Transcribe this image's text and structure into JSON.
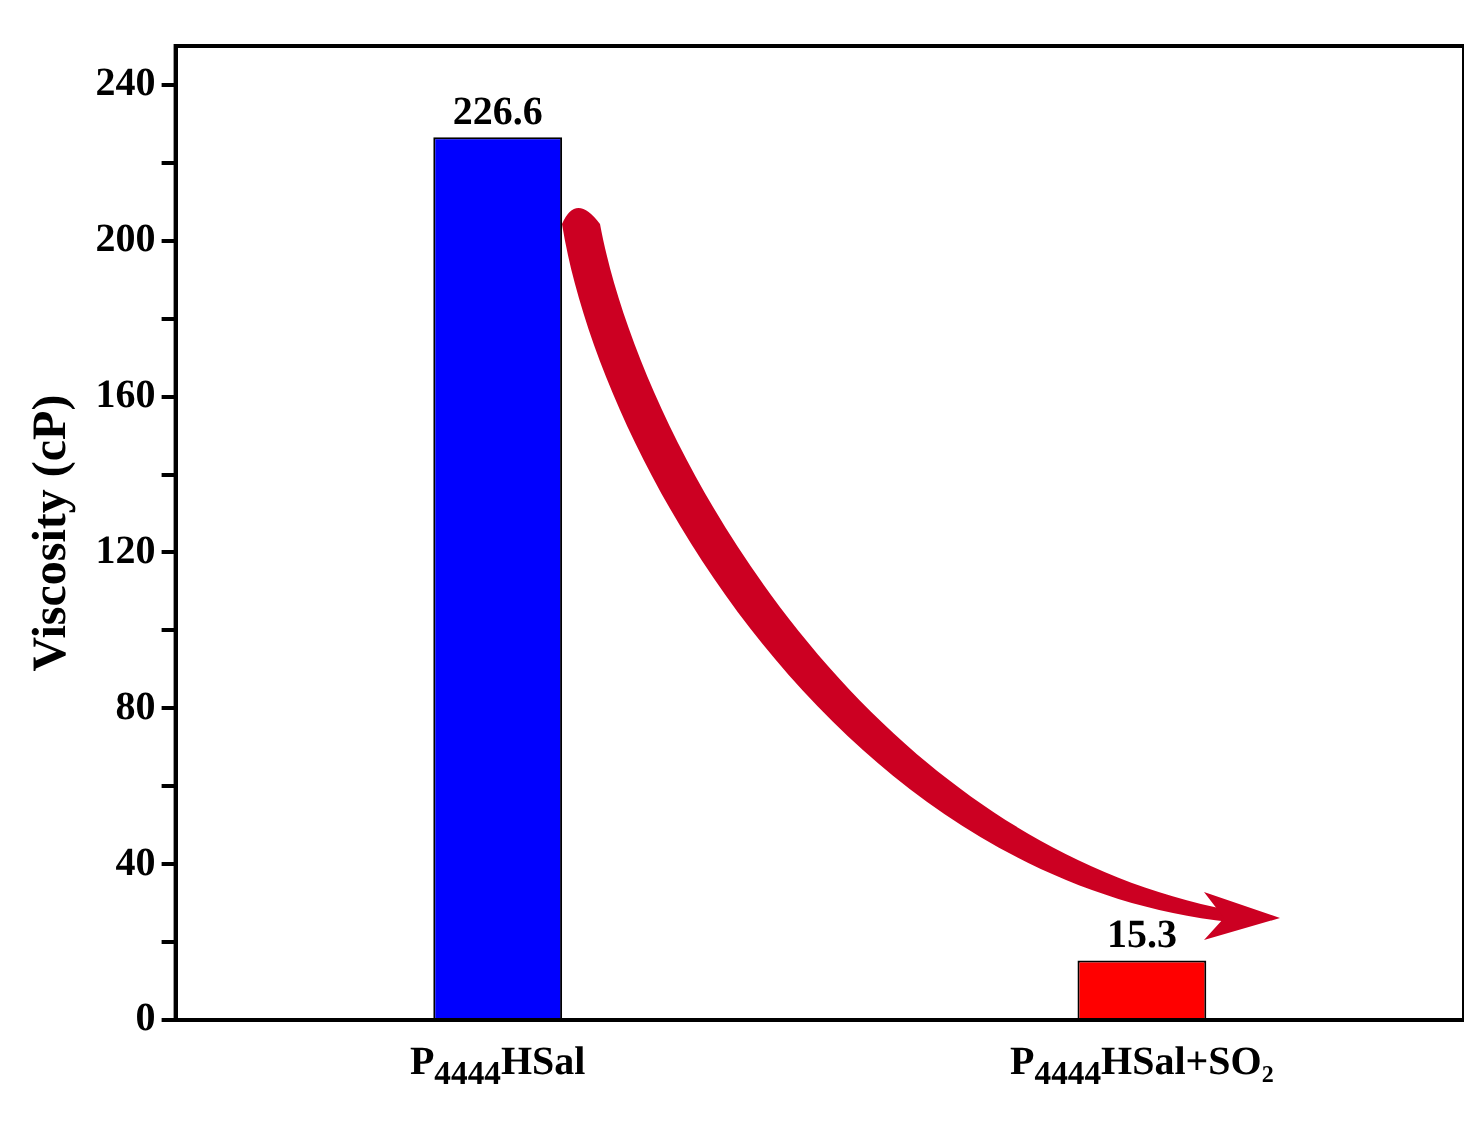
{
  "chart_data": {
    "type": "bar",
    "ylabel": "Viscosity (cP)",
    "categories": [
      "P$_{4444}$HSal",
      "P$_{4444}$HSal+SO₂"
    ],
    "values": [
      226.6,
      15.3
    ],
    "colors": [
      "#0000ff",
      "#ff0000"
    ],
    "ylim": [
      0,
      250
    ],
    "yticks": [
      0,
      {
        "value": 20,
        "label": null
      },
      40,
      {
        "value": 60,
        "label": null
      },
      80,
      {
        "value": 100,
        "label": null
      },
      120,
      {
        "value": 140,
        "label": null
      },
      160,
      {
        "value": 180,
        "label": null
      },
      200,
      {
        "value": 220,
        "label": null
      },
      240
    ],
    "data_labels": true,
    "grid": false,
    "legend": false
  }
}
